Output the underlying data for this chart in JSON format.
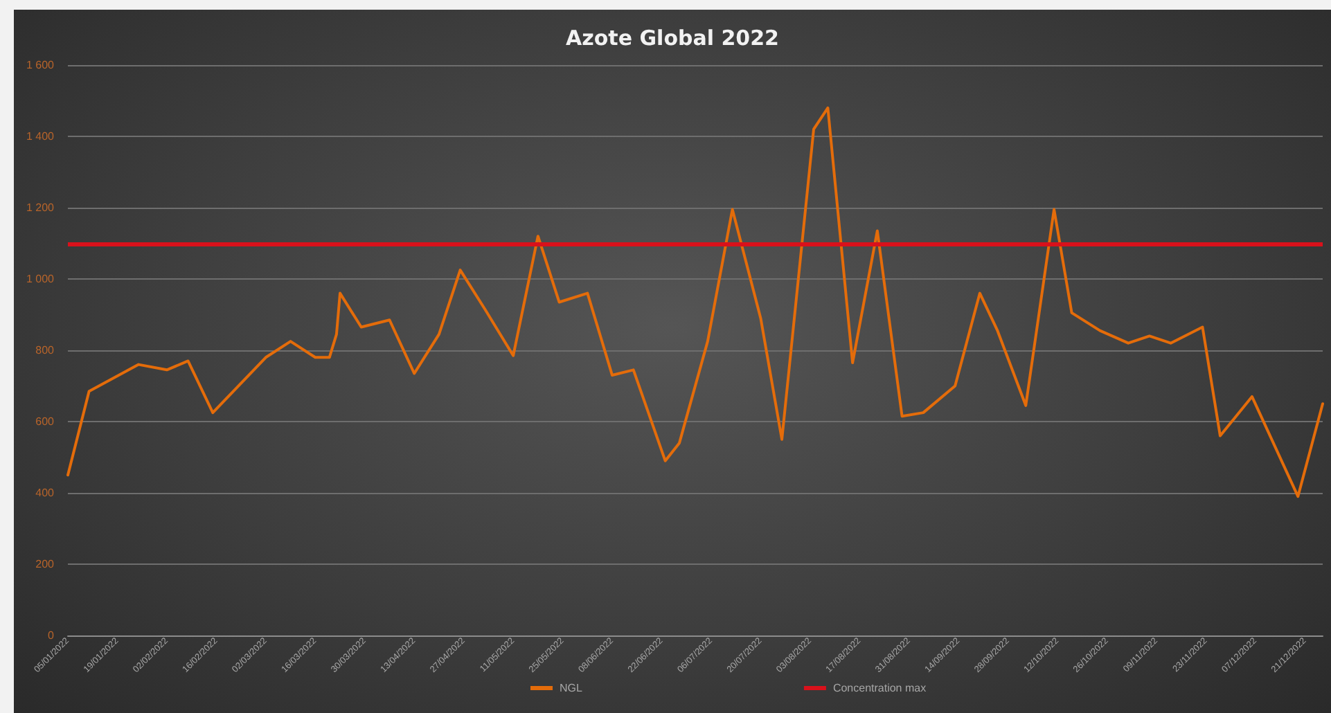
{
  "chart_data": {
    "type": "line",
    "title": "Azote Global 2022",
    "x": [
      "2022-01-05",
      "2022-01-11",
      "2022-01-25",
      "2022-02-02",
      "2022-02-08",
      "2022-02-15",
      "2022-03-02",
      "2022-03-09",
      "2022-03-16",
      "2022-03-20",
      "2022-03-22",
      "2022-03-23",
      "2022-03-29",
      "2022-04-06",
      "2022-04-13",
      "2022-04-20",
      "2022-04-26",
      "2022-05-03",
      "2022-05-11",
      "2022-05-18",
      "2022-05-24",
      "2022-06-01",
      "2022-06-08",
      "2022-06-14",
      "2022-06-23",
      "2022-06-27",
      "2022-07-05",
      "2022-07-12",
      "2022-07-20",
      "2022-07-26",
      "2022-08-04",
      "2022-08-08",
      "2022-08-15",
      "2022-08-22",
      "2022-08-29",
      "2022-09-04",
      "2022-09-13",
      "2022-09-20",
      "2022-09-25",
      "2022-10-03",
      "2022-10-11",
      "2022-10-16",
      "2022-10-24",
      "2022-11-01",
      "2022-11-07",
      "2022-11-13",
      "2022-11-22",
      "2022-11-27",
      "2022-12-06",
      "2022-12-19",
      "2022-12-26"
    ],
    "series": [
      {
        "name": "NGL",
        "color": "#e46c0a",
        "values": [
          450,
          685,
          760,
          745,
          770,
          625,
          780,
          825,
          780,
          780,
          845,
          960,
          865,
          885,
          735,
          845,
          1025,
          915,
          785,
          1120,
          935,
          960,
          730,
          745,
          490,
          540,
          825,
          1195,
          890,
          550,
          1420,
          1480,
          765,
          1135,
          615,
          625,
          700,
          960,
          855,
          645,
          1195,
          905,
          855,
          820,
          840,
          820,
          865,
          560,
          670,
          390,
          650
        ]
      }
    ],
    "ref_lines": [
      {
        "axis": "y",
        "value": 1100,
        "label": "Concentration max",
        "color": "#d9111b"
      }
    ],
    "xlim": [
      "2022-01-05",
      "2022-12-26"
    ],
    "xticks": [
      {
        "value": "2022-01-05",
        "label": "05/01/2022"
      },
      {
        "value": "2022-01-19",
        "label": "19/01/2022"
      },
      {
        "value": "2022-02-02",
        "label": "02/02/2022"
      },
      {
        "value": "2022-02-16",
        "label": "16/02/2022"
      },
      {
        "value": "2022-03-02",
        "label": "02/03/2022"
      },
      {
        "value": "2022-03-16",
        "label": "16/03/2022"
      },
      {
        "value": "2022-03-30",
        "label": "30/03/2022"
      },
      {
        "value": "2022-04-13",
        "label": "13/04/2022"
      },
      {
        "value": "2022-04-27",
        "label": "27/04/2022"
      },
      {
        "value": "2022-05-11",
        "label": "11/05/2022"
      },
      {
        "value": "2022-05-25",
        "label": "25/05/2022"
      },
      {
        "value": "2022-06-08",
        "label": "08/06/2022"
      },
      {
        "value": "2022-06-22",
        "label": "22/06/2022"
      },
      {
        "value": "2022-07-06",
        "label": "06/07/2022"
      },
      {
        "value": "2022-07-20",
        "label": "20/07/2022"
      },
      {
        "value": "2022-08-03",
        "label": "03/08/2022"
      },
      {
        "value": "2022-08-17",
        "label": "17/08/2022"
      },
      {
        "value": "2022-08-31",
        "label": "31/08/2022"
      },
      {
        "value": "2022-09-14",
        "label": "14/09/2022"
      },
      {
        "value": "2022-09-28",
        "label": "28/09/2022"
      },
      {
        "value": "2022-10-12",
        "label": "12/10/2022"
      },
      {
        "value": "2022-10-26",
        "label": "26/10/2022"
      },
      {
        "value": "2022-11-09",
        "label": "09/11/2022"
      },
      {
        "value": "2022-11-23",
        "label": "23/11/2022"
      },
      {
        "value": "2022-12-07",
        "label": "07/12/2022"
      },
      {
        "value": "2022-12-21",
        "label": "21/12/2022"
      }
    ],
    "ylim": [
      0,
      1600
    ],
    "yticks": [
      0,
      200,
      400,
      600,
      800,
      {
        "value": 1000,
        "label": "1 000"
      },
      {
        "value": 1200,
        "label": "1 200"
      },
      {
        "value": 1400,
        "label": "1 400"
      },
      {
        "value": 1600,
        "label": "1 600"
      }
    ],
    "grid": "y",
    "legend": "bottom",
    "marker": "none",
    "line_style": "solid"
  }
}
